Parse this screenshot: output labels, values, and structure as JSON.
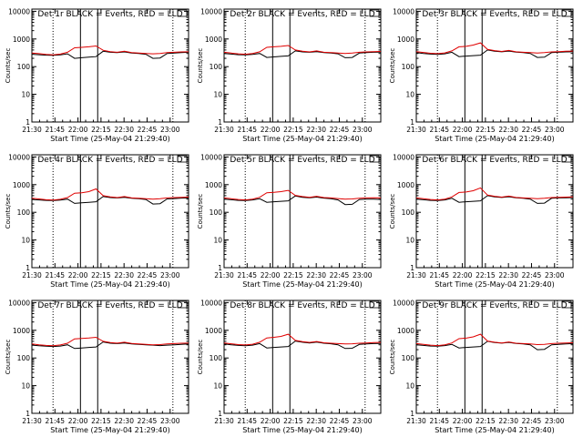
{
  "chart_data": [
    {
      "type": "line",
      "title": "Det 1r BLACK = Events, RED = LLD",
      "xlabel": "Start Time (25-May-04 21:29:40)",
      "ylabel": "Counts/sec",
      "yscale": "log",
      "ylim": [
        1,
        12000
      ],
      "xlim": [
        0,
        100
      ],
      "x_ticks": [
        "21:30",
        "21:45",
        "22:00",
        "22:15",
        "22:30",
        "22:45",
        "23:00"
      ],
      "y_ticks": [
        "1",
        "10",
        "100",
        "1000",
        "10000"
      ],
      "series": [
        {
          "values": [
            280,
            270,
            260,
            255,
            265,
            290,
            200,
            210,
            220,
            230,
            360,
            330,
            320,
            340,
            310,
            300,
            280,
            200,
            205,
            300,
            310,
            320,
            330
          ]
        },
        {
          "values": [
            310,
            295,
            275,
            265,
            285,
            330,
            480,
            500,
            520,
            560,
            390,
            350,
            330,
            360,
            320,
            310,
            300,
            290,
            300,
            320,
            330,
            340,
            345
          ]
        }
      ]
    },
    {
      "type": "line",
      "title": "Det 2r BLACK = Events, RED = LLD",
      "xlabel": "Start Time (25-May-04 21:29:40)",
      "ylabel": "Counts/sec",
      "yscale": "log",
      "ylim": [
        1,
        12000
      ],
      "xlim": [
        0,
        100
      ],
      "x_ticks": [
        "21:30",
        "21:45",
        "22:00",
        "22:15",
        "22:30",
        "22:45",
        "23:00"
      ],
      "y_ticks": [
        "1",
        "10",
        "100",
        "1000",
        "10000"
      ],
      "series": [
        {
          "values": [
            300,
            285,
            270,
            265,
            275,
            300,
            215,
            225,
            235,
            245,
            370,
            340,
            330,
            350,
            320,
            310,
            290,
            210,
            215,
            310,
            320,
            330,
            335
          ]
        },
        {
          "values": [
            330,
            310,
            290,
            280,
            300,
            345,
            500,
            520,
            540,
            580,
            400,
            360,
            340,
            370,
            330,
            320,
            310,
            300,
            310,
            330,
            340,
            350,
            355
          ]
        }
      ]
    },
    {
      "type": "line",
      "title": "Det 3r BLACK = Events, RED = LLD",
      "xlabel": "Start Time (25-May-04 21:29:40)",
      "ylabel": "Counts/sec",
      "yscale": "log",
      "ylim": [
        1,
        12000
      ],
      "xlim": [
        0,
        100
      ],
      "x_ticks": [
        "21:30",
        "21:45",
        "22:00",
        "22:15",
        "22:30",
        "22:45",
        "23:00"
      ],
      "y_ticks": [
        "1",
        "10",
        "100",
        "1000",
        "10000"
      ],
      "series": [
        {
          "values": [
            320,
            300,
            285,
            275,
            290,
            330,
            230,
            240,
            250,
            260,
            400,
            360,
            345,
            365,
            335,
            320,
            300,
            215,
            220,
            320,
            330,
            340,
            345
          ]
        },
        {
          "values": [
            350,
            325,
            305,
            295,
            315,
            370,
            520,
            540,
            600,
            720,
            420,
            380,
            355,
            385,
            345,
            330,
            320,
            310,
            320,
            340,
            350,
            360,
            365
          ]
        }
      ]
    },
    {
      "type": "line",
      "title": "Det 4r BLACK = Events, RED = LLD",
      "xlabel": "Start Time (25-May-04 21:29:40)",
      "ylabel": "Counts/sec",
      "yscale": "log",
      "ylim": [
        1,
        12000
      ],
      "xlim": [
        0,
        100
      ],
      "x_ticks": [
        "21:30",
        "21:45",
        "22:00",
        "22:15",
        "22:30",
        "22:45",
        "23:00"
      ],
      "y_ticks": [
        "1",
        "10",
        "100",
        "1000",
        "10000"
      ],
      "series": [
        {
          "values": [
            290,
            280,
            270,
            265,
            275,
            300,
            210,
            220,
            230,
            240,
            370,
            340,
            330,
            350,
            320,
            310,
            290,
            200,
            205,
            305,
            315,
            325,
            330
          ]
        },
        {
          "values": [
            320,
            305,
            285,
            275,
            295,
            340,
            490,
            510,
            560,
            700,
            400,
            360,
            340,
            370,
            330,
            320,
            310,
            300,
            310,
            330,
            340,
            350,
            355
          ]
        }
      ]
    },
    {
      "type": "line",
      "title": "Det 5r BLACK = Events, RED = LLD",
      "xlabel": "Start Time (25-May-04 21:29:40)",
      "ylabel": "Counts/sec",
      "yscale": "log",
      "ylim": [
        1,
        12000
      ],
      "xlim": [
        0,
        100
      ],
      "x_ticks": [
        "21:30",
        "21:45",
        "22:00",
        "22:15",
        "22:30",
        "22:45",
        "23:00"
      ],
      "y_ticks": [
        "1",
        "10",
        "100",
        "1000",
        "10000"
      ],
      "series": [
        {
          "values": [
            300,
            285,
            270,
            265,
            280,
            310,
            230,
            240,
            250,
            260,
            390,
            350,
            335,
            355,
            325,
            310,
            280,
            190,
            195,
            290,
            300,
            300,
            290
          ]
        },
        {
          "values": [
            330,
            310,
            290,
            280,
            300,
            350,
            510,
            530,
            560,
            620,
            410,
            370,
            350,
            380,
            340,
            330,
            315,
            300,
            305,
            320,
            330,
            335,
            330
          ]
        }
      ]
    },
    {
      "type": "line",
      "title": "Det 6r BLACK = Events, RED = LLD",
      "xlabel": "Start Time (25-May-04 21:29:40)",
      "ylabel": "Counts/sec",
      "yscale": "log",
      "ylim": [
        1,
        12000
      ],
      "xlim": [
        0,
        100
      ],
      "x_ticks": [
        "21:30",
        "21:45",
        "22:00",
        "22:15",
        "22:30",
        "22:45",
        "23:00"
      ],
      "y_ticks": [
        "1",
        "10",
        "100",
        "1000",
        "10000"
      ],
      "series": [
        {
          "values": [
            300,
            285,
            270,
            265,
            280,
            320,
            230,
            240,
            250,
            260,
            400,
            360,
            345,
            365,
            335,
            320,
            300,
            210,
            215,
            320,
            330,
            335,
            340
          ]
        },
        {
          "values": [
            330,
            310,
            290,
            280,
            300,
            360,
            520,
            540,
            600,
            760,
            420,
            380,
            355,
            385,
            345,
            330,
            320,
            310,
            320,
            340,
            350,
            355,
            360
          ]
        }
      ]
    },
    {
      "type": "line",
      "title": "Det 7r BLACK = Events, RED = LLD",
      "xlabel": "Start Time (25-May-04 21:29:40)",
      "ylabel": "Counts/sec",
      "yscale": "log",
      "ylim": [
        1,
        12000
      ],
      "xlim": [
        0,
        100
      ],
      "x_ticks": [
        "21:30",
        "21:45",
        "22:00",
        "22:15",
        "22:30",
        "22:45",
        "23:00"
      ],
      "y_ticks": [
        "1",
        "10",
        "100",
        "1000",
        "10000"
      ],
      "series": [
        {
          "values": [
            290,
            275,
            265,
            260,
            270,
            300,
            220,
            230,
            240,
            250,
            380,
            340,
            330,
            350,
            320,
            310,
            300,
            290,
            280,
            290,
            300,
            310,
            320
          ]
        },
        {
          "values": [
            320,
            300,
            285,
            275,
            295,
            340,
            490,
            510,
            530,
            560,
            400,
            360,
            345,
            370,
            335,
            320,
            310,
            300,
            305,
            320,
            330,
            340,
            345
          ]
        }
      ]
    },
    {
      "type": "line",
      "title": "Det 8r BLACK = Events, RED = LLD",
      "xlabel": "Start Time (25-May-04 21:29:40)",
      "ylabel": "Counts/sec",
      "yscale": "log",
      "ylim": [
        1,
        12000
      ],
      "xlim": [
        0,
        100
      ],
      "x_ticks": [
        "21:30",
        "21:45",
        "22:00",
        "22:15",
        "22:30",
        "22:45",
        "23:00"
      ],
      "y_ticks": [
        "1",
        "10",
        "100",
        "1000",
        "10000"
      ],
      "series": [
        {
          "values": [
            320,
            300,
            285,
            275,
            290,
            330,
            230,
            240,
            250,
            260,
            410,
            370,
            350,
            375,
            340,
            325,
            300,
            220,
            225,
            310,
            320,
            330,
            335
          ]
        },
        {
          "values": [
            350,
            325,
            305,
            295,
            315,
            370,
            530,
            560,
            600,
            720,
            430,
            390,
            365,
            395,
            355,
            340,
            330,
            320,
            325,
            340,
            350,
            360,
            365
          ]
        }
      ]
    },
    {
      "type": "line",
      "title": "Det 9r BLACK = Events, RED = LLD",
      "xlabel": "Start Time (25-May-04 21:29:40)",
      "ylabel": "Counts/sec",
      "yscale": "log",
      "ylim": [
        1,
        12000
      ],
      "xlim": [
        0,
        100
      ],
      "x_ticks": [
        "21:30",
        "21:45",
        "22:00",
        "22:15",
        "22:30",
        "22:45",
        "23:00"
      ],
      "y_ticks": [
        "1",
        "10",
        "100",
        "1000",
        "10000"
      ],
      "series": [
        {
          "values": [
            300,
            285,
            270,
            265,
            280,
            310,
            230,
            240,
            250,
            260,
            400,
            360,
            345,
            365,
            335,
            320,
            300,
            200,
            205,
            300,
            310,
            320,
            330
          ]
        },
        {
          "values": [
            330,
            310,
            290,
            280,
            300,
            350,
            500,
            520,
            580,
            720,
            410,
            370,
            350,
            380,
            340,
            330,
            320,
            305,
            310,
            330,
            340,
            350,
            355
          ]
        }
      ]
    }
  ],
  "colors": {
    "events": "#000000",
    "lld": "#e00000",
    "axis": "#000000"
  },
  "markers": {
    "dotted_x": [
      13.5,
      90
    ],
    "solid_x": [
      31,
      42
    ]
  }
}
